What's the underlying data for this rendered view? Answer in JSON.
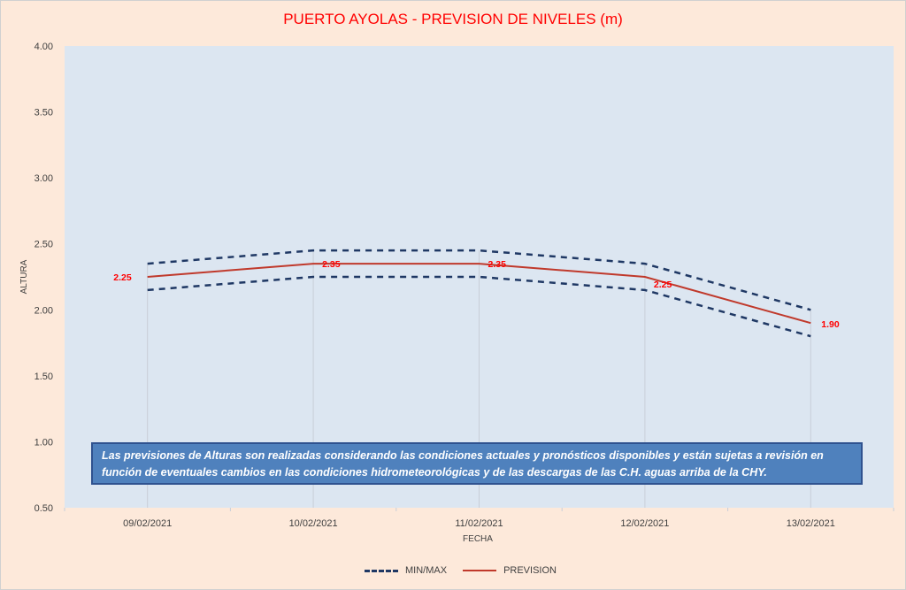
{
  "chart_data": {
    "type": "line",
    "title": "PUERTO AYOLAS - PREVISION DE NIVELES (m)",
    "xlabel": "FECHA",
    "ylabel": "ALTURA",
    "categories": [
      "09/02/2021",
      "10/02/2021",
      "11/02/2021",
      "12/02/2021",
      "13/02/2021"
    ],
    "ylim": [
      0.5,
      4.0
    ],
    "yticks": [
      "0.50",
      "1.00",
      "1.50",
      "2.00",
      "2.50",
      "3.00",
      "3.50",
      "4.00"
    ],
    "series": [
      {
        "name": "MIN/MAX",
        "role": "max",
        "color": "#1f3864",
        "values": [
          2.35,
          2.45,
          2.45,
          2.35,
          2.0
        ]
      },
      {
        "name": "MIN/MAX",
        "role": "min",
        "color": "#1f3864",
        "values": [
          2.15,
          2.25,
          2.25,
          2.15,
          1.8
        ]
      },
      {
        "name": "PREVISION",
        "role": "forecast",
        "color": "#c0392b",
        "values": [
          2.25,
          2.35,
          2.35,
          2.25,
          1.9
        ]
      }
    ],
    "data_labels": [
      "2.25",
      "2.35",
      "2.35",
      "2.25",
      "1.90"
    ],
    "legend": {
      "position": "bottom",
      "items": [
        "MIN/MAX",
        "PREVISION"
      ]
    },
    "grid": "vertical"
  },
  "note": "Las previsiones de Alturas son realizadas considerando las condiciones actuales y pronósticos disponibles y están sujetas a revisión en función de eventuales cambios en las condiciones hidrometeorológicas y de las descargas de las C.H. aguas arriba de la CHY.",
  "colors": {
    "plot_bg": "#dce6f1",
    "page_bg": "#fde9da",
    "title": "#ff0000",
    "label": "#ff0000"
  }
}
